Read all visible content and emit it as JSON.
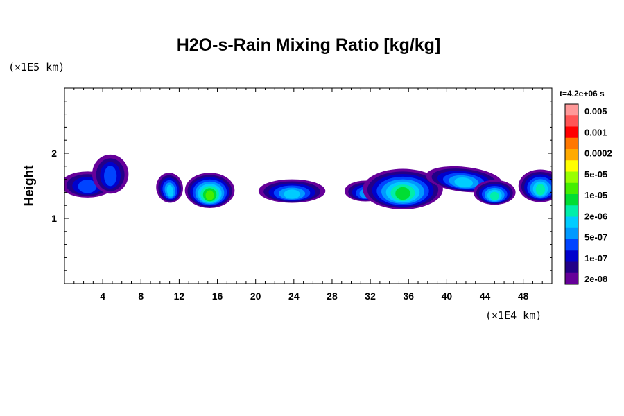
{
  "chart_data": {
    "type": "heatmap",
    "title": "H2O-s-Rain Mixing Ratio [kg/kg]",
    "ylabel": "Height",
    "xlabel": "",
    "x_unit": "(×1E4 km)",
    "y_unit": "(×1E5 km)",
    "time_label": "t=4.2e+06 s",
    "xlim": [
      0,
      51
    ],
    "ylim": [
      0,
      3
    ],
    "x_ticks": [
      4,
      8,
      12,
      16,
      20,
      24,
      28,
      32,
      36,
      40,
      44,
      48
    ],
    "y_ticks": [
      1,
      2
    ],
    "colorbar": {
      "labels": [
        "0.005",
        "0.001",
        "0.0002",
        "5e-05",
        "1e-05",
        "2e-06",
        "5e-07",
        "1e-07",
        "2e-08"
      ],
      "colors": [
        "#ff9999",
        "#ff5555",
        "#ff0000",
        "#ff7700",
        "#ffaa00",
        "#ffff00",
        "#99ff00",
        "#44ee00",
        "#00dd33",
        "#00eeaa",
        "#00ccff",
        "#0099ff",
        "#0044ff",
        "#0000cc",
        "#220088",
        "#660099"
      ]
    },
    "cells": [
      {
        "xc": 2.4,
        "yc": 1.52,
        "rx": 2.8,
        "ry": 0.2,
        "tilt": 0,
        "levels": 2
      },
      {
        "xc": 4.8,
        "yc": 1.68,
        "rx": 1.9,
        "ry": 0.3,
        "tilt": 0,
        "levels": 2
      },
      {
        "xc": 11.0,
        "yc": 1.47,
        "rx": 1.4,
        "ry": 0.23,
        "tilt": -10,
        "levels": 4
      },
      {
        "xc": 15.2,
        "yc": 1.43,
        "rx": 2.6,
        "ry": 0.27,
        "tilt": 0,
        "levels": 7
      },
      {
        "xc": 23.8,
        "yc": 1.42,
        "rx": 3.5,
        "ry": 0.18,
        "tilt": 0,
        "levels": 4
      },
      {
        "xc": 31.5,
        "yc": 1.42,
        "rx": 2.2,
        "ry": 0.16,
        "tilt": 0,
        "levels": 3
      },
      {
        "xc": 35.4,
        "yc": 1.45,
        "rx": 4.2,
        "ry": 0.31,
        "tilt": 0,
        "levels": 6
      },
      {
        "xc": 41.8,
        "yc": 1.6,
        "rx": 4.0,
        "ry": 0.19,
        "tilt": 6,
        "levels": 4
      },
      {
        "xc": 45.0,
        "yc": 1.4,
        "rx": 2.2,
        "ry": 0.19,
        "tilt": 0,
        "levels": 5
      },
      {
        "xc": 49.8,
        "yc": 1.5,
        "rx": 2.3,
        "ry": 0.25,
        "tilt": 0,
        "levels": 5
      }
    ]
  }
}
